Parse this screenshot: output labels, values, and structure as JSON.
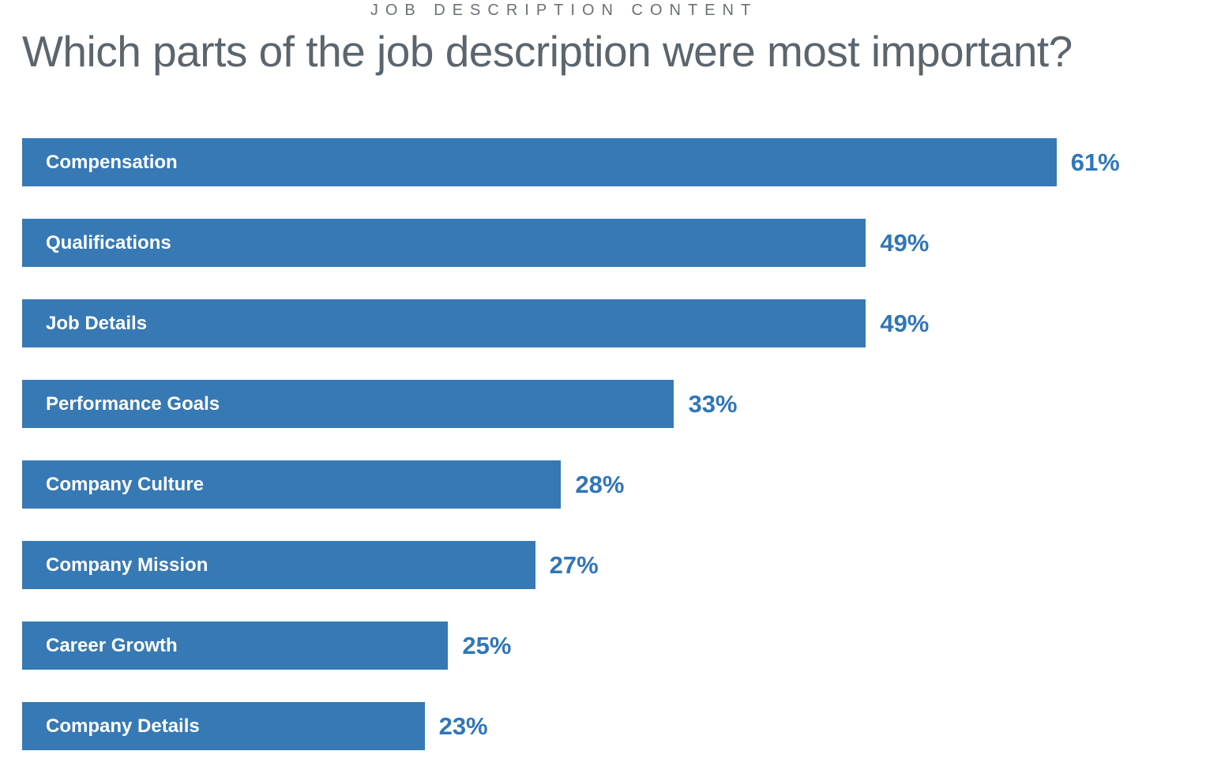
{
  "page": {
    "eyebrow": "JOB DESCRIPTION CONTENT",
    "title": "Which parts of the job description were most important?"
  },
  "colors": {
    "background": "#FFFFFF",
    "bar": "#3779B4",
    "bar_label_text": "#FFFFFF",
    "value_label_text": "#3076B8",
    "title_text": "#5B656D",
    "eyebrow_text": "#6A7177"
  },
  "chart_data": {
    "type": "bar",
    "orientation": "horizontal",
    "subtitle": "JOB DESCRIPTION CONTENT",
    "title": "Which parts of the job description were most important?",
    "categories": [
      "Compensation",
      "Qualifications",
      "Job Details",
      "Performance Goals",
      "Company Culture",
      "Company Mission",
      "Career Growth",
      "Company Details"
    ],
    "values": [
      61,
      49,
      49,
      33,
      28,
      27,
      25,
      23
    ],
    "value_labels": [
      "61%",
      "49%",
      "49%",
      "33%",
      "28%",
      "27%",
      "25%",
      "23%"
    ],
    "value_suffix": "%",
    "xlim": [
      0,
      100
    ],
    "grid": false,
    "legend": false,
    "axes_shown": false,
    "category_label_position": "inside-left",
    "value_label_position": "outside-right",
    "bar_display_width_pct": [
      87.9,
      71.7,
      71.7,
      55.4,
      45.8,
      43.6,
      36.2,
      34.2
    ]
  }
}
